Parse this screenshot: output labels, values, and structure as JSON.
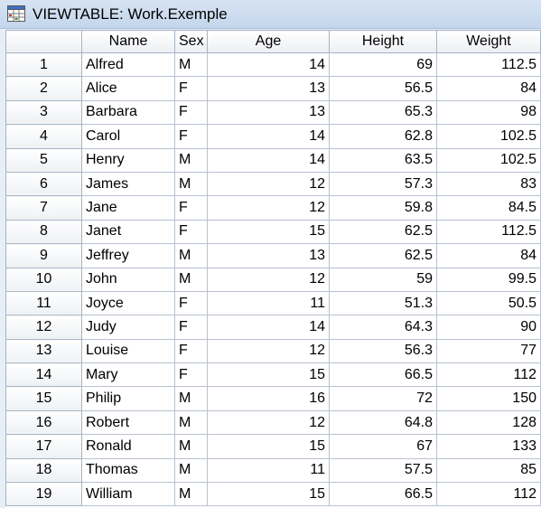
{
  "window": {
    "title": "VIEWTABLE: Work.Exemple",
    "icon": "viewtable-app-icon"
  },
  "table": {
    "row_header_label": "",
    "columns": [
      "Name",
      "Sex",
      "Age",
      "Height",
      "Weight"
    ],
    "rows": [
      {
        "num": "1",
        "name": "Alfred",
        "sex": "M",
        "age": "14",
        "height": "69",
        "weight": "112.5"
      },
      {
        "num": "2",
        "name": "Alice",
        "sex": "F",
        "age": "13",
        "height": "56.5",
        "weight": "84"
      },
      {
        "num": "3",
        "name": "Barbara",
        "sex": "F",
        "age": "13",
        "height": "65.3",
        "weight": "98"
      },
      {
        "num": "4",
        "name": "Carol",
        "sex": "F",
        "age": "14",
        "height": "62.8",
        "weight": "102.5"
      },
      {
        "num": "5",
        "name": "Henry",
        "sex": "M",
        "age": "14",
        "height": "63.5",
        "weight": "102.5"
      },
      {
        "num": "6",
        "name": "James",
        "sex": "M",
        "age": "12",
        "height": "57.3",
        "weight": "83"
      },
      {
        "num": "7",
        "name": "Jane",
        "sex": "F",
        "age": "12",
        "height": "59.8",
        "weight": "84.5"
      },
      {
        "num": "8",
        "name": "Janet",
        "sex": "F",
        "age": "15",
        "height": "62.5",
        "weight": "112.5"
      },
      {
        "num": "9",
        "name": "Jeffrey",
        "sex": "M",
        "age": "13",
        "height": "62.5",
        "weight": "84"
      },
      {
        "num": "10",
        "name": "John",
        "sex": "M",
        "age": "12",
        "height": "59",
        "weight": "99.5"
      },
      {
        "num": "11",
        "name": "Joyce",
        "sex": "F",
        "age": "11",
        "height": "51.3",
        "weight": "50.5"
      },
      {
        "num": "12",
        "name": "Judy",
        "sex": "F",
        "age": "14",
        "height": "64.3",
        "weight": "90"
      },
      {
        "num": "13",
        "name": "Louise",
        "sex": "F",
        "age": "12",
        "height": "56.3",
        "weight": "77"
      },
      {
        "num": "14",
        "name": "Mary",
        "sex": "F",
        "age": "15",
        "height": "66.5",
        "weight": "112"
      },
      {
        "num": "15",
        "name": "Philip",
        "sex": "M",
        "age": "16",
        "height": "72",
        "weight": "150"
      },
      {
        "num": "16",
        "name": "Robert",
        "sex": "M",
        "age": "12",
        "height": "64.8",
        "weight": "128"
      },
      {
        "num": "17",
        "name": "Ronald",
        "sex": "M",
        "age": "15",
        "height": "67",
        "weight": "133"
      },
      {
        "num": "18",
        "name": "Thomas",
        "sex": "M",
        "age": "11",
        "height": "57.5",
        "weight": "85"
      },
      {
        "num": "19",
        "name": "William",
        "sex": "M",
        "age": "15",
        "height": "66.5",
        "weight": "112"
      }
    ]
  }
}
